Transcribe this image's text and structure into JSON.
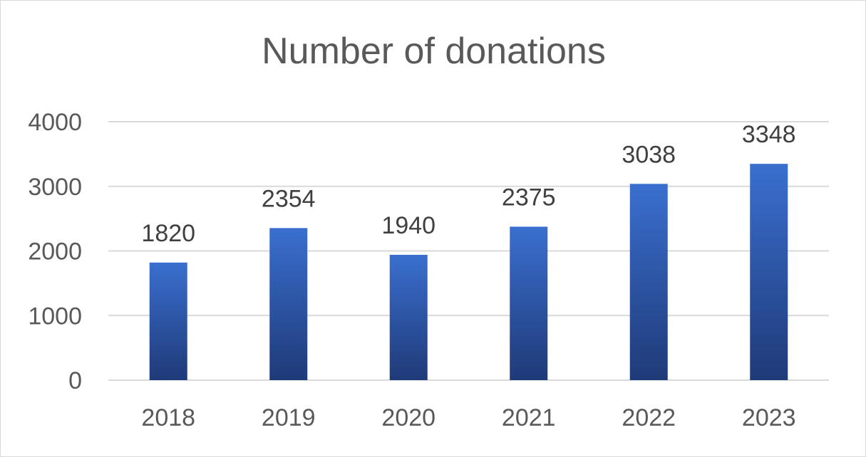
{
  "chart_data": {
    "type": "bar",
    "title": "Number of donations",
    "xlabel": "",
    "ylabel": "",
    "categories": [
      "2018",
      "2019",
      "2020",
      "2021",
      "2022",
      "2023"
    ],
    "values": [
      1820,
      2354,
      1940,
      2375,
      3038,
      3348
    ],
    "ylim": [
      0,
      4000
    ],
    "yticks": [
      0,
      1000,
      2000,
      3000,
      4000
    ],
    "grid": true,
    "legend": "none",
    "colors": {
      "bar_top": "#3a6fcf",
      "bar_bottom": "#1f3a78",
      "grid": "#d9d9d9",
      "text": "#595959",
      "data_label": "#404040"
    }
  }
}
